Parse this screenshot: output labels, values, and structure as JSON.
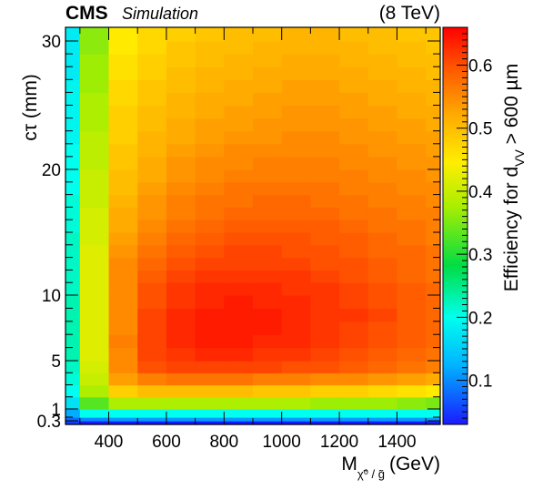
{
  "chart_data": {
    "type": "heatmap",
    "header": {
      "experiment": "CMS",
      "tag": "Simulation",
      "energy": "(8 TeV)"
    },
    "xlabel": {
      "main": "M",
      "sub": "χ̃⁰ / g̃",
      "unit": "(GeV)"
    },
    "ylabel": "cτ (mm)",
    "zlabel": {
      "main": "Efficiency for d",
      "sub": "VV",
      "tail": " > 600 µm"
    },
    "xlim": [
      250,
      1550
    ],
    "x_tick_labels": [
      "400",
      "600",
      "800",
      "1000",
      "1200",
      "1400"
    ],
    "x_tick_values": [
      400,
      600,
      800,
      1000,
      1200,
      1400
    ],
    "y_tick_labels": [
      "30",
      "20",
      "10",
      "5",
      "1",
      "0.3"
    ],
    "y_tick_values": [
      30,
      20,
      10,
      5,
      1,
      0.3
    ],
    "zlim": [
      0.03,
      0.66
    ],
    "z_tick_labels": [
      "0.1",
      "0.2",
      "0.3",
      "0.4",
      "0.5",
      "0.6"
    ],
    "z_tick_values": [
      0.1,
      0.2,
      0.3,
      0.4,
      0.5,
      0.6
    ],
    "x_bins": [
      250,
      300,
      400,
      500,
      600,
      700,
      800,
      900,
      1000,
      1100,
      1200,
      1300,
      1400,
      1500,
      1550
    ],
    "y_bins": [
      0.1,
      0.3,
      0.6,
      1,
      2,
      3,
      4,
      5,
      6,
      7,
      8,
      9,
      10,
      11,
      12,
      13,
      14,
      15,
      16,
      17,
      18,
      19,
      20,
      21,
      22,
      23,
      24,
      25,
      26,
      27,
      28,
      29,
      30,
      31
    ],
    "z_values": [
      [
        0.05,
        0.03,
        0.03,
        0.03,
        0.03,
        0.03,
        0.03,
        0.03,
        0.03,
        0.03,
        0.03,
        0.03,
        0.03,
        0.03
      ],
      [
        0.08,
        0.1,
        0.11,
        0.11,
        0.11,
        0.11,
        0.11,
        0.11,
        0.11,
        0.11,
        0.11,
        0.11,
        0.11,
        0.11
      ],
      [
        0.12,
        0.2,
        0.2,
        0.2,
        0.2,
        0.2,
        0.2,
        0.2,
        0.2,
        0.2,
        0.2,
        0.2,
        0.2,
        0.2
      ],
      [
        0.17,
        0.33,
        0.38,
        0.38,
        0.38,
        0.38,
        0.38,
        0.38,
        0.38,
        0.37,
        0.37,
        0.37,
        0.36,
        0.35
      ],
      [
        0.2,
        0.38,
        0.48,
        0.5,
        0.5,
        0.5,
        0.5,
        0.49,
        0.49,
        0.48,
        0.48,
        0.47,
        0.46,
        0.45
      ],
      [
        0.21,
        0.4,
        0.53,
        0.56,
        0.57,
        0.57,
        0.57,
        0.56,
        0.56,
        0.55,
        0.55,
        0.54,
        0.53,
        0.52
      ],
      [
        0.22,
        0.41,
        0.55,
        0.6,
        0.61,
        0.61,
        0.61,
        0.61,
        0.6,
        0.6,
        0.59,
        0.58,
        0.57,
        0.56
      ],
      [
        0.23,
        0.42,
        0.55,
        0.61,
        0.62,
        0.63,
        0.63,
        0.62,
        0.62,
        0.61,
        0.6,
        0.59,
        0.58,
        0.57
      ],
      [
        0.23,
        0.42,
        0.56,
        0.61,
        0.63,
        0.64,
        0.64,
        0.63,
        0.63,
        0.62,
        0.61,
        0.6,
        0.59,
        0.58
      ],
      [
        0.23,
        0.42,
        0.55,
        0.61,
        0.63,
        0.64,
        0.64,
        0.64,
        0.63,
        0.62,
        0.61,
        0.6,
        0.59,
        0.58
      ],
      [
        0.23,
        0.42,
        0.55,
        0.61,
        0.63,
        0.64,
        0.64,
        0.64,
        0.63,
        0.62,
        0.62,
        0.61,
        0.59,
        0.58
      ],
      [
        0.23,
        0.42,
        0.55,
        0.6,
        0.62,
        0.63,
        0.64,
        0.63,
        0.63,
        0.62,
        0.61,
        0.6,
        0.59,
        0.58
      ],
      [
        0.22,
        0.42,
        0.55,
        0.6,
        0.62,
        0.63,
        0.63,
        0.63,
        0.62,
        0.62,
        0.61,
        0.6,
        0.59,
        0.58
      ],
      [
        0.22,
        0.42,
        0.55,
        0.59,
        0.61,
        0.62,
        0.62,
        0.62,
        0.62,
        0.61,
        0.6,
        0.59,
        0.58,
        0.57
      ],
      [
        0.22,
        0.42,
        0.55,
        0.58,
        0.6,
        0.61,
        0.61,
        0.61,
        0.61,
        0.6,
        0.6,
        0.59,
        0.58,
        0.57
      ],
      [
        0.22,
        0.42,
        0.54,
        0.57,
        0.59,
        0.6,
        0.61,
        0.61,
        0.6,
        0.6,
        0.59,
        0.58,
        0.58,
        0.57
      ],
      [
        0.22,
        0.41,
        0.53,
        0.56,
        0.58,
        0.59,
        0.6,
        0.6,
        0.6,
        0.59,
        0.59,
        0.58,
        0.57,
        0.56
      ],
      [
        0.21,
        0.41,
        0.52,
        0.55,
        0.57,
        0.58,
        0.59,
        0.59,
        0.59,
        0.59,
        0.58,
        0.57,
        0.57,
        0.56
      ],
      [
        0.21,
        0.41,
        0.52,
        0.54,
        0.56,
        0.57,
        0.58,
        0.58,
        0.58,
        0.58,
        0.57,
        0.57,
        0.56,
        0.56
      ],
      [
        0.21,
        0.4,
        0.51,
        0.54,
        0.56,
        0.57,
        0.57,
        0.58,
        0.58,
        0.57,
        0.57,
        0.56,
        0.56,
        0.55
      ],
      [
        0.2,
        0.4,
        0.5,
        0.53,
        0.55,
        0.56,
        0.57,
        0.57,
        0.57,
        0.57,
        0.56,
        0.56,
        0.55,
        0.55
      ],
      [
        0.2,
        0.4,
        0.5,
        0.52,
        0.54,
        0.55,
        0.56,
        0.56,
        0.56,
        0.56,
        0.56,
        0.55,
        0.55,
        0.54
      ],
      [
        0.2,
        0.39,
        0.49,
        0.52,
        0.54,
        0.55,
        0.55,
        0.56,
        0.56,
        0.56,
        0.55,
        0.55,
        0.54,
        0.54
      ],
      [
        0.2,
        0.39,
        0.49,
        0.51,
        0.53,
        0.54,
        0.55,
        0.55,
        0.55,
        0.55,
        0.55,
        0.54,
        0.54,
        0.53
      ],
      [
        0.19,
        0.39,
        0.48,
        0.51,
        0.52,
        0.53,
        0.54,
        0.54,
        0.55,
        0.55,
        0.54,
        0.54,
        0.53,
        0.53
      ],
      [
        0.19,
        0.38,
        0.48,
        0.5,
        0.52,
        0.53,
        0.53,
        0.54,
        0.54,
        0.54,
        0.54,
        0.53,
        0.53,
        0.52
      ],
      [
        0.19,
        0.38,
        0.48,
        0.5,
        0.51,
        0.52,
        0.53,
        0.53,
        0.54,
        0.54,
        0.53,
        0.53,
        0.52,
        0.52
      ],
      [
        0.19,
        0.38,
        0.47,
        0.49,
        0.51,
        0.52,
        0.52,
        0.53,
        0.53,
        0.53,
        0.53,
        0.52,
        0.52,
        0.51
      ],
      [
        0.19,
        0.37,
        0.47,
        0.49,
        0.5,
        0.51,
        0.52,
        0.52,
        0.53,
        0.53,
        0.52,
        0.52,
        0.51,
        0.51
      ],
      [
        0.18,
        0.37,
        0.46,
        0.48,
        0.5,
        0.51,
        0.51,
        0.52,
        0.52,
        0.52,
        0.52,
        0.51,
        0.51,
        0.5
      ],
      [
        0.18,
        0.37,
        0.46,
        0.48,
        0.49,
        0.5,
        0.51,
        0.51,
        0.52,
        0.52,
        0.51,
        0.51,
        0.5,
        0.5
      ],
      [
        0.18,
        0.36,
        0.45,
        0.47,
        0.49,
        0.5,
        0.5,
        0.51,
        0.51,
        0.51,
        0.51,
        0.5,
        0.5,
        0.49
      ],
      [
        0.18,
        0.36,
        0.45,
        0.47,
        0.48,
        0.49,
        0.5,
        0.5,
        0.51,
        0.51,
        0.5,
        0.5,
        0.49,
        0.49
      ]
    ]
  }
}
